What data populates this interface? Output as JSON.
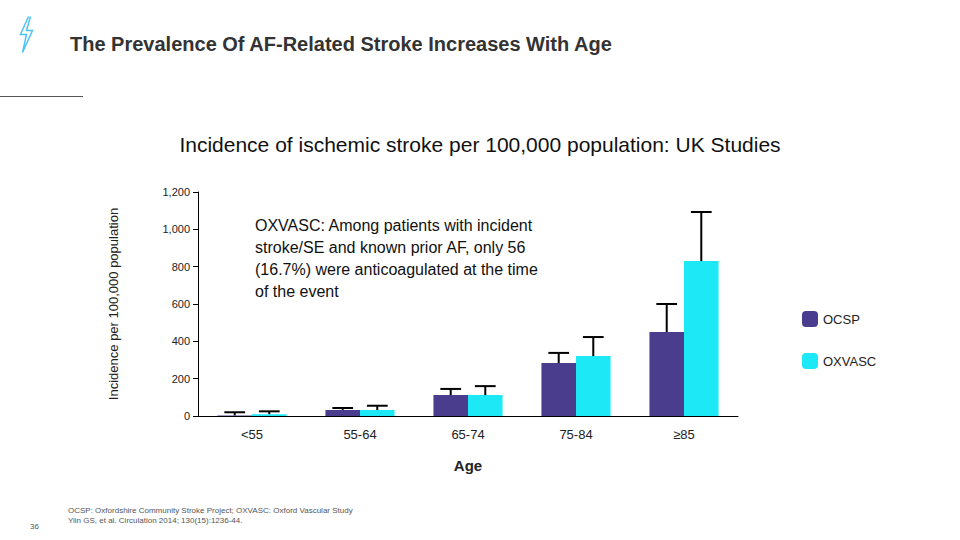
{
  "chart_data": {
    "type": "bar",
    "title": "The Prevalence Of AF-Related Stroke Increases With Age",
    "subtitle": "Incidence of ischemic stroke per 100,000 population: UK Studies",
    "x_label": "Age",
    "y_label": "Incidence per 100,000 population",
    "annotation": "OXVASC: Among patients with incident stroke/SE and known prior AF, only 56 (16.7%) were anticoagulated at the time of the event",
    "footnotes": [
      "OCSP: Oxfordshire Community Stroke Project; OXVASC: Oxford Vascular Study",
      "Yiin GS, et al. Circulation 2014; 130(15):1236-44."
    ],
    "page_number": 36,
    "categories": [
      "<55",
      "55-64",
      "65-74",
      "75-84",
      "≥85"
    ],
    "series": [
      {
        "name": "OCSP",
        "color": "#4A3D8D",
        "values": [
          3,
          32,
          112,
          284,
          450
        ],
        "error_high": [
          20,
          43,
          145,
          338,
          600
        ]
      },
      {
        "name": "OXVASC",
        "color": "#1DE9F6",
        "values": [
          10,
          32,
          112,
          321,
          830
        ],
        "error_high": [
          25,
          55,
          160,
          423,
          1093
        ]
      }
    ],
    "ylim": [
      0,
      1200
    ],
    "yticks": [
      0,
      200,
      400,
      600,
      800,
      1000,
      1200
    ],
    "grid": false,
    "legend": "right"
  }
}
